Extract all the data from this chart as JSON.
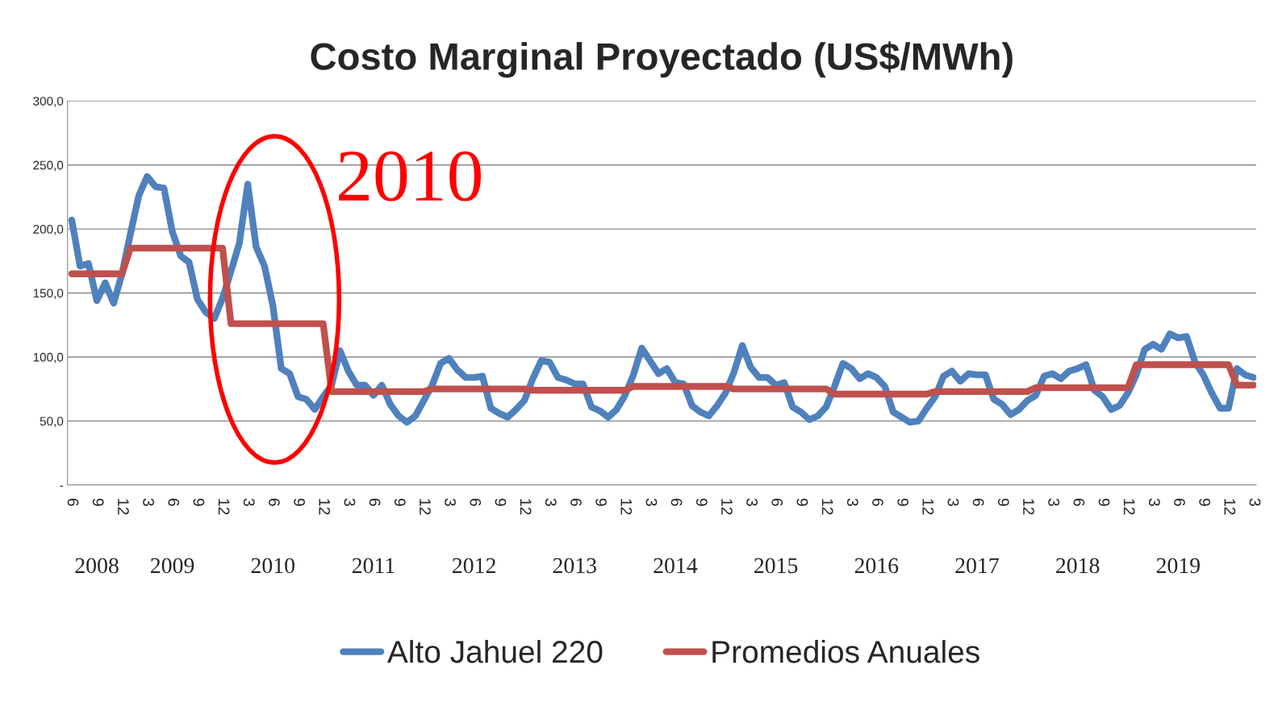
{
  "chart_data": {
    "type": "line",
    "title": "Costo Marginal Proyectado (US$/MWh)",
    "categories": [
      "6",
      null,
      null,
      "9",
      null,
      null,
      "12",
      null,
      null,
      "3",
      null,
      null,
      "6",
      null,
      null,
      "9",
      null,
      null,
      "12",
      null,
      null,
      "3",
      null,
      null,
      "6",
      null,
      null,
      "9",
      null,
      null,
      "12",
      null,
      null,
      "3",
      null,
      null,
      "6",
      null,
      null,
      "9",
      null,
      null,
      "12",
      null,
      null,
      "3",
      null,
      null,
      "6",
      null,
      null,
      "9",
      null,
      null,
      "12",
      null,
      null,
      "3",
      null,
      null,
      "6",
      null,
      null,
      "9",
      null,
      null,
      "12",
      null,
      null,
      "3",
      null,
      null,
      "6",
      null,
      null,
      "9",
      null,
      null,
      "12",
      null,
      null,
      "3",
      null,
      null,
      "6",
      null,
      null,
      "9",
      null,
      null,
      "12",
      null,
      null,
      "3",
      null,
      null,
      "6",
      null,
      null,
      "9",
      null,
      null,
      "12",
      null,
      null,
      "3",
      null,
      null,
      "6",
      null,
      null,
      "9",
      null,
      null,
      "12",
      null,
      null,
      "3",
      null,
      null,
      "6",
      null,
      null,
      "9",
      null,
      null,
      "12",
      null,
      null,
      "3",
      null,
      null,
      "6",
      null,
      null,
      "9",
      null,
      null,
      "12",
      null,
      null,
      "3"
    ],
    "series": [
      {
        "name": "Alto Jahuel 220",
        "color": "#4f81bd",
        "values": [
          207,
          171,
          173,
          144,
          158,
          142,
          165,
          196,
          226,
          241,
          233,
          232,
          198,
          179,
          174,
          145,
          135,
          130,
          146,
          167,
          189,
          235,
          186,
          171,
          140,
          91,
          87,
          69,
          67,
          59,
          69,
          78,
          105,
          89,
          78,
          78,
          70,
          78,
          63,
          54,
          49,
          54,
          66,
          78,
          95,
          99,
          90,
          84,
          84,
          85,
          60,
          56,
          53,
          59,
          66,
          83,
          97,
          96,
          84,
          82,
          79,
          79,
          61,
          58,
          53,
          59,
          70,
          86,
          107,
          97,
          87,
          91,
          80,
          79,
          62,
          57,
          54,
          62,
          72,
          88,
          109,
          92,
          84,
          84,
          78,
          80,
          61,
          57,
          51,
          54,
          61,
          77,
          95,
          91,
          83,
          87,
          84,
          77,
          57,
          53,
          49,
          50,
          60,
          69,
          85,
          89,
          81,
          87,
          86,
          86,
          67,
          63,
          55,
          59,
          66,
          70,
          85,
          87,
          83,
          89,
          91,
          94,
          74,
          69,
          59,
          62,
          72,
          86,
          106,
          110,
          106,
          118,
          115,
          116,
          96,
          86,
          72,
          60,
          60,
          91,
          86,
          84
        ]
      },
      {
        "name": "Promedios Anuales",
        "color": "#c0504d",
        "values": [
          165,
          165,
          165,
          165,
          165,
          165,
          165,
          185,
          185,
          185,
          185,
          185,
          185,
          185,
          185,
          185,
          185,
          185,
          185,
          126,
          126,
          126,
          126,
          126,
          126,
          126,
          126,
          126,
          126,
          126,
          126,
          73,
          73,
          73,
          73,
          73,
          73,
          73,
          73,
          73,
          73,
          73,
          73,
          75,
          75,
          75,
          75,
          75,
          75,
          75,
          75,
          75,
          75,
          75,
          75,
          74,
          74,
          74,
          74,
          74,
          74,
          74,
          74,
          74,
          74,
          74,
          74,
          77,
          77,
          77,
          77,
          77,
          77,
          77,
          77,
          77,
          77,
          77,
          77,
          75,
          75,
          75,
          75,
          75,
          75,
          75,
          75,
          75,
          75,
          75,
          75,
          71,
          71,
          71,
          71,
          71,
          71,
          71,
          71,
          71,
          71,
          71,
          71,
          73,
          73,
          73,
          73,
          73,
          73,
          73,
          73,
          73,
          73,
          73,
          73,
          76,
          76,
          76,
          76,
          76,
          76,
          76,
          76,
          76,
          76,
          76,
          76,
          94,
          94,
          94,
          94,
          94,
          94,
          94,
          94,
          94,
          94,
          94,
          94,
          78,
          78,
          78
        ]
      }
    ],
    "ylim": [
      0,
      300
    ],
    "yticks": [
      {
        "value": 0,
        "label": "-"
      },
      {
        "value": 50,
        "label": "50,0"
      },
      {
        "value": 100,
        "label": "100,0"
      },
      {
        "value": 150,
        "label": "150,0"
      },
      {
        "value": 200,
        "label": "200,0"
      },
      {
        "value": 250,
        "label": "250,0"
      },
      {
        "value": 300,
        "label": "300,0"
      }
    ],
    "annotations": [
      "2008",
      "2009",
      "2010",
      "2011",
      "2012",
      "2013",
      "2014",
      "2015",
      "2016",
      "2017",
      "2018",
      "2019",
      "2010"
    ],
    "grid": "y",
    "legend": "bottom",
    "marker": "none",
    "line_style": "solid"
  }
}
